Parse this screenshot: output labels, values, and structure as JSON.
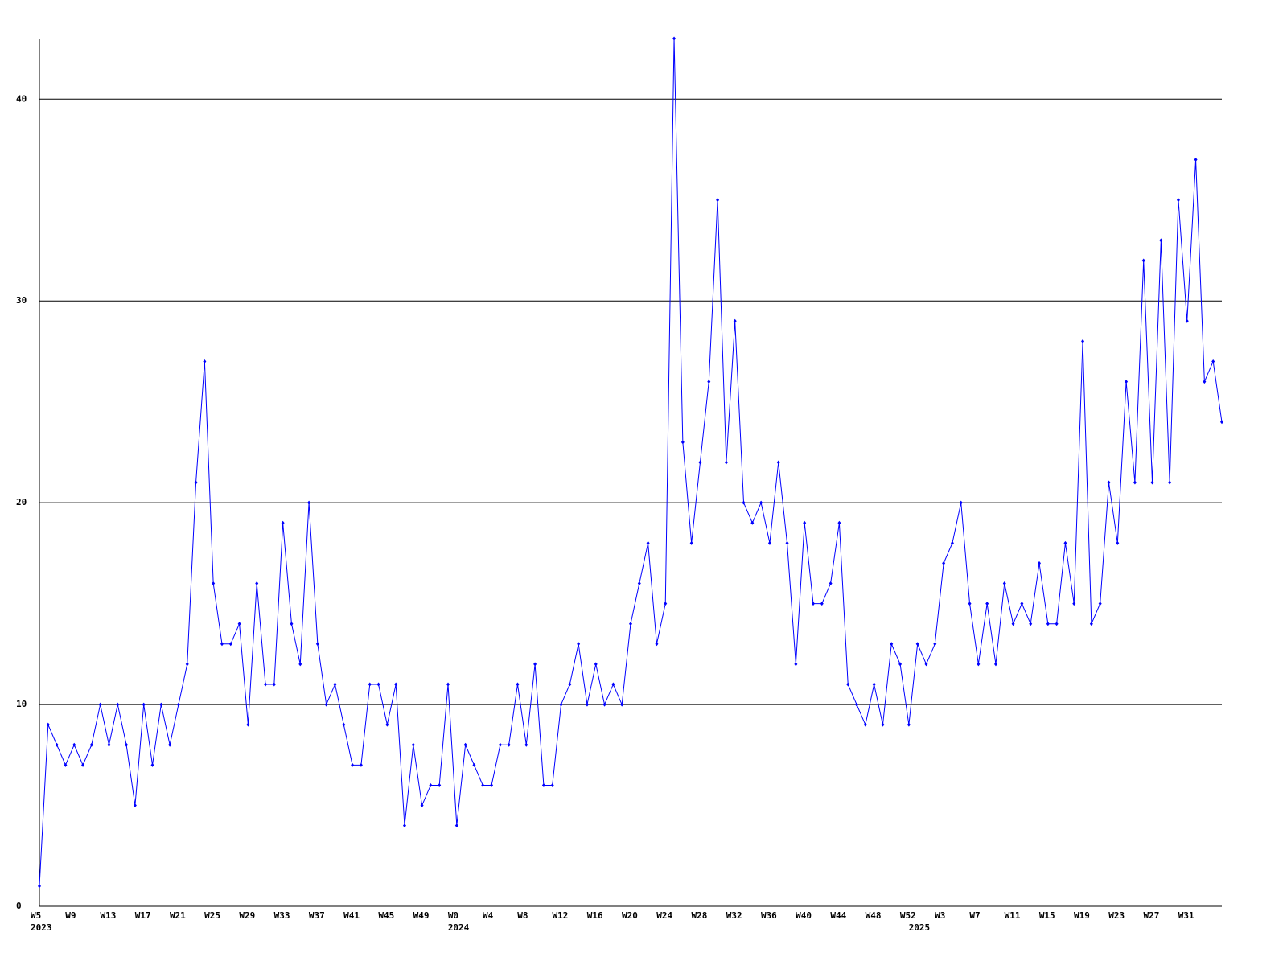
{
  "chart_data": {
    "type": "line",
    "categories": [
      "W5",
      null,
      null,
      null,
      "W9",
      null,
      null,
      null,
      "W13",
      null,
      null,
      null,
      "W17",
      null,
      null,
      null,
      "W21",
      null,
      null,
      null,
      "W25",
      null,
      null,
      null,
      "W29",
      null,
      null,
      null,
      "W33",
      null,
      null,
      null,
      "W37",
      null,
      null,
      null,
      "W41",
      null,
      null,
      null,
      "W45",
      null,
      null,
      null,
      "W49",
      null,
      null,
      null,
      "W0",
      null,
      null,
      null,
      "W4",
      null,
      null,
      null,
      "W8",
      null,
      null,
      null,
      "W12",
      null,
      null,
      null,
      "W16",
      null,
      null,
      null,
      "W20",
      null,
      null,
      null,
      "W24",
      null,
      null,
      null,
      "W28",
      null,
      null,
      null,
      "W32",
      null,
      null,
      null,
      "W36",
      null,
      null,
      null,
      "W40",
      null,
      null,
      null,
      "W44",
      null,
      null,
      null,
      "W48",
      null,
      null,
      null,
      "W52",
      null,
      null,
      null,
      "W3",
      null,
      null,
      null,
      "W7",
      null,
      null,
      null,
      "W11",
      null,
      null,
      null,
      "W15",
      null,
      null,
      null,
      "W19",
      null,
      null,
      null,
      "W23",
      null,
      null,
      null,
      "W27",
      null,
      null,
      null,
      "W31",
      null,
      null,
      null,
      null
    ],
    "years": [
      "2023",
      null,
      null,
      null,
      null,
      null,
      null,
      null,
      null,
      null,
      null,
      null,
      null,
      null,
      null,
      null,
      null,
      null,
      null,
      null,
      null,
      null,
      null,
      null,
      null,
      null,
      null,
      null,
      null,
      null,
      null,
      null,
      null,
      null,
      null,
      null,
      null,
      null,
      null,
      null,
      null,
      null,
      null,
      null,
      null,
      null,
      null,
      null,
      "2024",
      null,
      null,
      null,
      null,
      null,
      null,
      null,
      null,
      null,
      null,
      null,
      null,
      null,
      null,
      null,
      null,
      null,
      null,
      null,
      null,
      null,
      null,
      null,
      null,
      null,
      null,
      null,
      null,
      null,
      null,
      null,
      null,
      null,
      null,
      null,
      null,
      null,
      null,
      null,
      null,
      null,
      null,
      null,
      null,
      null,
      null,
      null,
      null,
      null,
      null,
      null,
      null,
      "2025",
      null,
      null,
      null,
      null,
      null,
      null,
      null,
      null,
      null,
      null,
      null,
      null,
      null,
      null,
      null,
      null,
      null,
      null,
      null,
      null,
      null,
      null,
      null,
      null,
      null,
      null,
      null,
      null,
      null,
      null,
      null,
      null,
      null,
      null,
      null
    ],
    "series": [
      {
        "color": "#0000ff",
        "values": [
          1,
          9,
          8,
          7,
          8,
          7,
          8,
          10,
          8,
          10,
          8,
          5,
          10,
          7,
          10,
          8,
          10,
          12,
          21,
          27,
          16,
          13,
          13,
          14,
          9,
          16,
          11,
          11,
          19,
          14,
          12,
          20,
          13,
          10,
          11,
          9,
          7,
          7,
          11,
          11,
          9,
          11,
          4,
          8,
          5,
          6,
          6,
          11,
          4,
          8,
          7,
          6,
          6,
          8,
          8,
          11,
          8,
          12,
          6,
          6,
          10,
          11,
          13,
          10,
          12,
          10,
          11,
          10,
          14,
          16,
          18,
          13,
          15,
          43,
          23,
          18,
          22,
          26,
          35,
          22,
          29,
          20,
          19,
          20,
          18,
          22,
          18,
          12,
          19,
          15,
          15,
          16,
          19,
          11,
          10,
          9,
          11,
          9,
          13,
          12,
          9,
          13,
          12,
          13,
          17,
          18,
          20,
          15,
          12,
          15,
          12,
          16,
          14,
          15,
          14,
          17,
          14,
          14,
          18,
          15,
          28,
          14,
          15,
          21,
          18,
          26,
          21,
          32,
          21,
          33,
          21,
          35,
          29,
          37,
          26,
          27,
          24
        ]
      }
    ],
    "ylim": [
      0,
      43
    ],
    "yticks": [
      0,
      10,
      20,
      30,
      40
    ],
    "grid": true
  }
}
